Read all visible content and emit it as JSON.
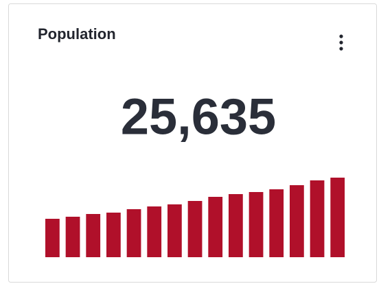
{
  "card": {
    "title": "Population",
    "value": "25,635"
  },
  "chart_data": {
    "type": "bar",
    "values": [
      56,
      59,
      63,
      65,
      70,
      74,
      77,
      82,
      88,
      92,
      95,
      99,
      105,
      112,
      116
    ],
    "color": "#b0102a",
    "ylim": [
      0,
      120
    ]
  }
}
